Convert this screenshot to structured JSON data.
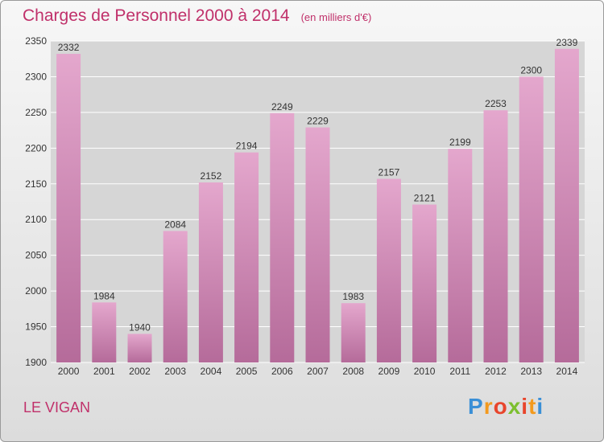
{
  "header": {
    "title": "Charges de Personnel 2000 à 2014",
    "unit": "(en milliers d'€)"
  },
  "footer": {
    "town": "LE VIGAN",
    "logo_letters": [
      "P",
      "r",
      "o",
      "x",
      "i",
      "t",
      "i"
    ],
    "logo_colors": [
      "#3a8fd6",
      "#f39a1e",
      "#e8452c",
      "#7cbf2f",
      "#e8452c",
      "#f39a1e",
      "#3a8fd6"
    ]
  },
  "colors": {
    "title": "#c0306a",
    "bar_top": "#e4a7cd",
    "bar_bottom": "#b56b9a",
    "grid": "#ffffff",
    "axis_text": "#333333"
  },
  "chart_data": {
    "type": "bar",
    "categories": [
      "2000",
      "2001",
      "2002",
      "2003",
      "2004",
      "2005",
      "2006",
      "2007",
      "2008",
      "2009",
      "2010",
      "2011",
      "2012",
      "2013",
      "2014"
    ],
    "values": [
      2332,
      1984,
      1940,
      2084,
      2152,
      2194,
      2249,
      2229,
      1983,
      2157,
      2121,
      2199,
      2253,
      2300,
      2339
    ],
    "value_labels": [
      "2332",
      "1984",
      "1940",
      "2084",
      "2152",
      "2194",
      "2249",
      "2229",
      "1983",
      "2157",
      "2121",
      "2199",
      "2253",
      "2300",
      "2339"
    ],
    "y_ticks": [
      "1900",
      "1950",
      "2000",
      "2050",
      "2100",
      "2150",
      "2200",
      "2250",
      "2300",
      "2350"
    ],
    "ylim": [
      1900,
      2350
    ],
    "grid": true,
    "legend": "none"
  }
}
